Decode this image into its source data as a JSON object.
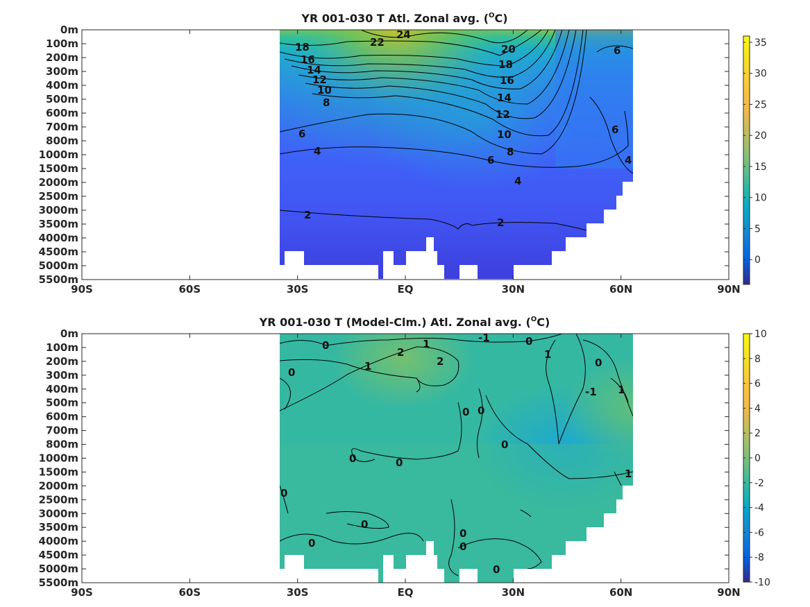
{
  "chart_data": [
    {
      "type": "heatmap",
      "title": "YR 001-030 T Atl. Zonal avg. (",
      "title_sup": "O",
      "title_end": "C)",
      "x_tick_labels": [
        "90S",
        "60S",
        "30S",
        "EQ",
        "30N",
        "60N",
        "90N"
      ],
      "x_tick_values": [
        -90,
        -60,
        -30,
        0,
        30,
        60,
        90
      ],
      "y_tick_labels": [
        "0m",
        "100m",
        "200m",
        "300m",
        "400m",
        "500m",
        "600m",
        "700m",
        "800m",
        "1000m",
        "1500m",
        "2000m",
        "2500m",
        "3000m",
        "3500m",
        "4000m",
        "4500m",
        "5000m",
        "5500m"
      ],
      "xlim": [
        -90,
        90
      ],
      "colorbar": {
        "min": -4,
        "max": 36,
        "ticks": [
          35,
          30,
          25,
          20,
          15,
          10,
          5,
          0
        ],
        "colormap": "parula"
      },
      "contour_labels": [
        "24",
        "22",
        "18",
        "16",
        "14",
        "12",
        "10",
        "8",
        "6",
        "4",
        "2",
        "20",
        "18",
        "16",
        "14",
        "12",
        "10",
        "8",
        "6",
        "4",
        "2",
        "6",
        "6",
        "4"
      ],
      "data_extent_lat": [
        -34,
        63
      ],
      "surface_temperature_max_approx": 26,
      "deep_temperature_approx": 2
    },
    {
      "type": "heatmap",
      "title": "YR 001-030 T (Model-Clm.) Atl. Zonal avg. (",
      "title_sup": "O",
      "title_end": "C)",
      "x_tick_labels": [
        "90S",
        "60S",
        "30S",
        "EQ",
        "30N",
        "60N",
        "90N"
      ],
      "x_tick_values": [
        -90,
        -60,
        -30,
        0,
        30,
        60,
        90
      ],
      "y_tick_labels": [
        "0m",
        "100m",
        "200m",
        "300m",
        "400m",
        "500m",
        "600m",
        "700m",
        "800m",
        "1000m",
        "1500m",
        "2000m",
        "2500m",
        "3000m",
        "3500m",
        "4000m",
        "4500m",
        "5000m",
        "5500m"
      ],
      "xlim": [
        -90,
        90
      ],
      "colorbar": {
        "min": -10,
        "max": 10,
        "ticks": [
          10,
          8,
          6,
          4,
          2,
          0,
          -2,
          -4,
          -6,
          -8,
          -10
        ],
        "colormap": "parula"
      },
      "contour_labels": [
        "0",
        "2",
        "1",
        "-1",
        "0",
        "1",
        "0",
        "1",
        "2",
        "0",
        "-1",
        "1",
        "0",
        "0",
        "0",
        "0",
        "0",
        "0",
        "0",
        "0",
        "1",
        "0",
        "0",
        "0"
      ],
      "data_extent_lat": [
        -34,
        63
      ]
    }
  ]
}
